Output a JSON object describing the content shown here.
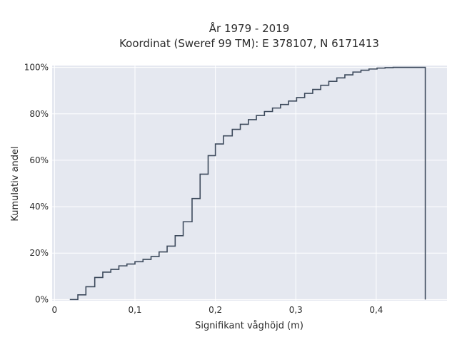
{
  "chart_data": {
    "type": "line",
    "line_shape": "step (empirical cumulative distribution)",
    "title_lines": [
      "År 1979 - 2019",
      "Koordinat (Sweref 99 TM): E 378107, N 6171413"
    ],
    "xlabel": "Signifikant våghöjd (m)",
    "ylabel": "Kumulativ andel",
    "x_ticks": [
      {
        "value": 0,
        "label": "0"
      },
      {
        "value": 0.1,
        "label": "0,1"
      },
      {
        "value": 0.2,
        "label": "0,2"
      },
      {
        "value": 0.3,
        "label": "0,3"
      },
      {
        "value": 0.4,
        "label": "0,4"
      }
    ],
    "y_ticks": [
      {
        "value": 0,
        "label": "0%"
      },
      {
        "value": 20,
        "label": "20%"
      },
      {
        "value": 40,
        "label": "40%"
      },
      {
        "value": 60,
        "label": "60%"
      },
      {
        "value": 80,
        "label": "80%"
      },
      {
        "value": 100,
        "label": "100%"
      }
    ],
    "xlim": [
      -0.003,
      0.488
    ],
    "ylim": [
      -0.5,
      100.8
    ],
    "grid": true,
    "colors": {
      "line": "#3d4a5c",
      "plot_background": "#e5e8f0",
      "grid": "#ffffff"
    },
    "series": [
      {
        "x": [
          0.019,
          0.029,
          0.039,
          0.05,
          0.06,
          0.07,
          0.08,
          0.09,
          0.1,
          0.11,
          0.12,
          0.13,
          0.14,
          0.15,
          0.16,
          0.171,
          0.181,
          0.191,
          0.2,
          0.21,
          0.221,
          0.231,
          0.241,
          0.251,
          0.261,
          0.271,
          0.281,
          0.291,
          0.301,
          0.311,
          0.321,
          0.331,
          0.341,
          0.351,
          0.361,
          0.371,
          0.381,
          0.391,
          0.401,
          0.411,
          0.421,
          0.461
        ],
        "y": [
          0,
          2,
          5.5,
          9.5,
          11.8,
          13,
          14.5,
          15.3,
          16.3,
          17.3,
          18.5,
          20.5,
          23,
          27.5,
          33.5,
          43.5,
          54,
          62,
          67,
          70.5,
          73.3,
          75.5,
          77.5,
          79.3,
          81,
          82.5,
          84,
          85.5,
          87,
          88.8,
          90.5,
          92.3,
          94,
          95.5,
          96.8,
          98,
          98.8,
          99.3,
          99.7,
          99.9,
          100,
          100
        ]
      }
    ]
  }
}
